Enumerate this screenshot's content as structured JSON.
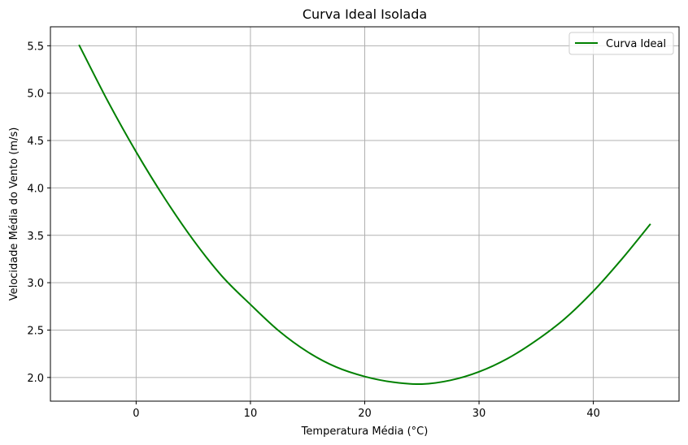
{
  "chart_data": {
    "type": "line",
    "title": "Curva Ideal Isolada",
    "xlabel": "Temperatura Média (°C)",
    "ylabel": "Velocidade Média do Vento (m/s)",
    "xlim": [
      -7.5,
      47.5
    ],
    "ylim": [
      1.75,
      5.7
    ],
    "xticks": [
      0,
      10,
      20,
      30,
      40
    ],
    "yticks": [
      2.0,
      2.5,
      3.0,
      3.5,
      4.0,
      4.5,
      5.0,
      5.5
    ],
    "xtick_labels": [
      "0",
      "10",
      "20",
      "30",
      "40"
    ],
    "ytick_labels": [
      "2.0",
      "2.5",
      "3.0",
      "3.5",
      "4.0",
      "4.5",
      "5.0",
      "5.5"
    ],
    "grid": true,
    "legend_position": "top-right",
    "series": [
      {
        "name": "Curva Ideal",
        "color": "#008000",
        "x": [
          -5,
          -2.5,
          0,
          2.5,
          5,
          7.5,
          10,
          12.5,
          15,
          17.5,
          20,
          22.5,
          25,
          27.5,
          30,
          32.5,
          35,
          37.5,
          40,
          42.5,
          45
        ],
        "y": [
          5.51,
          4.92,
          4.38,
          3.89,
          3.45,
          3.07,
          2.77,
          2.49,
          2.27,
          2.11,
          2.01,
          1.95,
          1.93,
          1.97,
          2.06,
          2.2,
          2.39,
          2.62,
          2.91,
          3.25,
          3.62
        ]
      }
    ]
  }
}
